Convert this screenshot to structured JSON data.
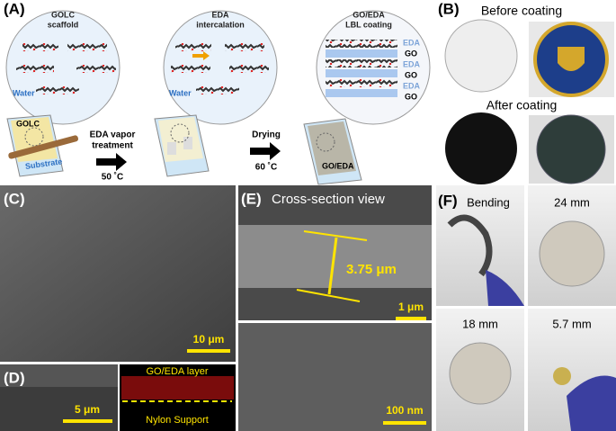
{
  "panels": {
    "a": {
      "label": "(A)",
      "bubbles": [
        {
          "title": [
            "GOLC",
            "scaffold"
          ],
          "medium": "Water"
        },
        {
          "title": [
            "EDA",
            "intercalation"
          ],
          "medium": "Water"
        },
        {
          "title": [
            "GO/EDA",
            "LBL coating"
          ],
          "layers": [
            "EDA",
            "GO",
            "EDA",
            "GO",
            "EDA",
            "GO"
          ]
        }
      ],
      "film1": {
        "label": "GOLC",
        "substrate": "Substrate"
      },
      "step1": {
        "text": [
          "EDA vapor",
          "treatment"
        ],
        "temp": "50 ˚C"
      },
      "step2": {
        "text": "Drying",
        "temp": "60 ˚C"
      },
      "film3": "GO/EDA"
    },
    "b": {
      "label": "(B)",
      "before": "Before coating",
      "after": "After coating"
    },
    "c": {
      "label": "(C)",
      "scale": "10 μm"
    },
    "d": {
      "label": "(D)",
      "scale": "5 μm",
      "top": "GO/EDA layer",
      "bottom": "Nylon Support"
    },
    "e": {
      "label": "(E)",
      "title": "Cross-section view",
      "thickness": "3.75 μm",
      "scale_top": "1 μm",
      "scale_bottom": "100 nm"
    },
    "f": {
      "label": "(F)",
      "photos": [
        "Bending",
        "24 mm",
        "18 mm",
        "5.7 mm"
      ]
    }
  }
}
